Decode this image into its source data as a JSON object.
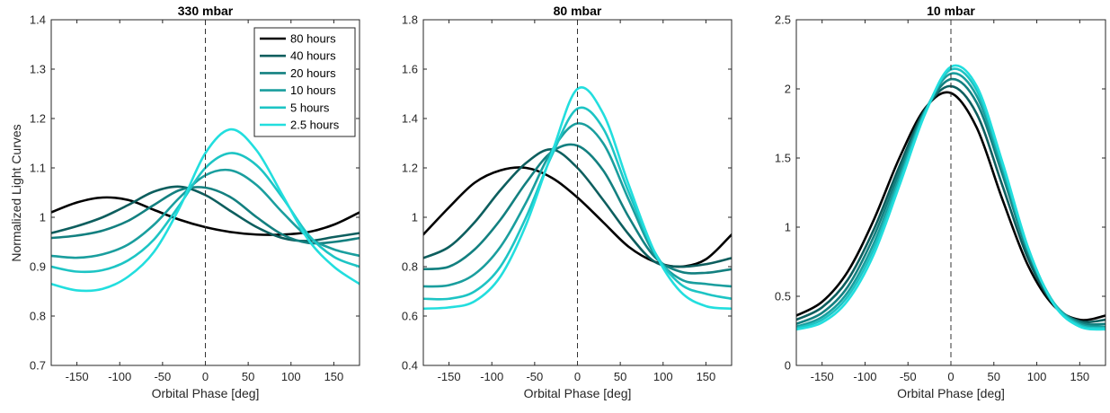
{
  "figure": {
    "ylabel": "Normalized Light Curves",
    "xlabel": "Orbital Phase [deg]"
  },
  "colors": {
    "80 hours": "#000000",
    "40 hours": "#0d5e5e",
    "20 hours": "#138080",
    "10 hours": "#1a9e9e",
    "5 hours": "#1dc4c4",
    "2.5 hours": "#22dede",
    "axis": "#262626",
    "phase_marker": "#333333"
  },
  "legend": {
    "placement": "top-right of first panel",
    "entries": [
      "80 hours",
      "40 hours",
      "20 hours",
      "10 hours",
      "5 hours",
      "2.5 hours"
    ]
  },
  "chart_data": [
    {
      "type": "line",
      "title": "330 mbar",
      "xlabel": "Orbital Phase [deg]",
      "ylabel": "Normalized Light Curves",
      "xlim": [
        -180,
        180
      ],
      "ylim": [
        0.7,
        1.4
      ],
      "xticks": [
        -150,
        -100,
        -50,
        0,
        50,
        100,
        150
      ],
      "yticks": [
        0.7,
        0.8,
        0.9,
        1,
        1.1,
        1.2,
        1.3,
        1.4
      ],
      "ytick_labels": [
        "0.7",
        "0.8",
        "0.9",
        "1",
        "1.1",
        "1.2",
        "1.3",
        "1.4"
      ],
      "vline_x": 0,
      "series": [
        {
          "name": "80 hours",
          "x": [
            -180,
            -150,
            -120,
            -90,
            -60,
            -30,
            0,
            30,
            60,
            90,
            120,
            150,
            180
          ],
          "y": [
            1.01,
            1.03,
            1.04,
            1.035,
            1.015,
            0.995,
            0.98,
            0.97,
            0.965,
            0.965,
            0.97,
            0.985,
            1.01
          ]
        },
        {
          "name": "40 hours",
          "x": [
            -180,
            -150,
            -120,
            -90,
            -60,
            -30,
            0,
            30,
            60,
            90,
            120,
            150,
            180
          ],
          "y": [
            0.968,
            0.982,
            1.0,
            1.025,
            1.052,
            1.062,
            1.045,
            1.012,
            0.98,
            0.958,
            0.952,
            0.96,
            0.968
          ]
        },
        {
          "name": "20 hours",
          "x": [
            -180,
            -150,
            -120,
            -90,
            -60,
            -30,
            0,
            30,
            60,
            90,
            120,
            150,
            180
          ],
          "y": [
            0.958,
            0.963,
            0.973,
            0.993,
            1.025,
            1.055,
            1.06,
            1.04,
            1.0,
            0.965,
            0.948,
            0.95,
            0.958
          ]
        },
        {
          "name": "10 hours",
          "x": [
            -180,
            -150,
            -120,
            -90,
            -60,
            -30,
            0,
            30,
            60,
            90,
            120,
            150,
            180
          ],
          "y": [
            0.922,
            0.918,
            0.925,
            0.945,
            0.985,
            1.04,
            1.085,
            1.095,
            1.065,
            1.01,
            0.96,
            0.935,
            0.922
          ]
        },
        {
          "name": "5 hours",
          "x": [
            -180,
            -150,
            -120,
            -90,
            -60,
            -30,
            0,
            30,
            60,
            90,
            120,
            150,
            180
          ],
          "y": [
            0.9,
            0.89,
            0.893,
            0.913,
            0.955,
            1.025,
            1.1,
            1.13,
            1.105,
            1.04,
            0.965,
            0.92,
            0.9
          ]
        },
        {
          "name": "2.5 hours",
          "x": [
            -180,
            -150,
            -120,
            -90,
            -60,
            -30,
            0,
            30,
            60,
            90,
            120,
            150,
            180
          ],
          "y": [
            0.865,
            0.852,
            0.855,
            0.88,
            0.93,
            1.02,
            1.13,
            1.178,
            1.135,
            1.045,
            0.955,
            0.9,
            0.865
          ]
        }
      ]
    },
    {
      "type": "line",
      "title": "80 mbar",
      "xlabel": "Orbital Phase [deg]",
      "ylabel": "",
      "xlim": [
        -180,
        180
      ],
      "ylim": [
        0.4,
        1.8
      ],
      "xticks": [
        -150,
        -100,
        -50,
        0,
        50,
        100,
        150
      ],
      "yticks": [
        0.4,
        0.6,
        0.8,
        1.0,
        1.2,
        1.4,
        1.6,
        1.8
      ],
      "ytick_labels": [
        "0.4",
        "0.6",
        "0.8",
        "1",
        "1.2",
        "1.4",
        "1.6",
        "1.8"
      ],
      "vline_x": 0,
      "series": [
        {
          "name": "80 hours",
          "x": [
            -180,
            -150,
            -120,
            -90,
            -60,
            -30,
            0,
            30,
            60,
            90,
            120,
            150,
            180
          ],
          "y": [
            0.93,
            1.04,
            1.14,
            1.19,
            1.2,
            1.16,
            1.08,
            0.98,
            0.88,
            0.82,
            0.8,
            0.83,
            0.93
          ]
        },
        {
          "name": "40 hours",
          "x": [
            -180,
            -150,
            -120,
            -90,
            -60,
            -30,
            0,
            30,
            60,
            90,
            120,
            150,
            180
          ],
          "y": [
            0.835,
            0.88,
            0.98,
            1.11,
            1.22,
            1.275,
            1.2,
            1.07,
            0.93,
            0.82,
            0.8,
            0.81,
            0.835
          ]
        },
        {
          "name": "20 hours",
          "x": [
            -180,
            -150,
            -120,
            -90,
            -60,
            -30,
            0,
            30,
            60,
            90,
            120,
            150,
            180
          ],
          "y": [
            0.79,
            0.8,
            0.87,
            0.99,
            1.14,
            1.265,
            1.29,
            1.19,
            1.0,
            0.84,
            0.78,
            0.775,
            0.79
          ]
        },
        {
          "name": "10 hours",
          "x": [
            -180,
            -150,
            -120,
            -90,
            -60,
            -30,
            0,
            30,
            60,
            90,
            120,
            150,
            180
          ],
          "y": [
            0.72,
            0.725,
            0.77,
            0.88,
            1.06,
            1.27,
            1.38,
            1.3,
            1.07,
            0.85,
            0.75,
            0.73,
            0.72
          ]
        },
        {
          "name": "5 hours",
          "x": [
            -180,
            -150,
            -120,
            -90,
            -60,
            -30,
            0,
            30,
            60,
            90,
            120,
            150,
            180
          ],
          "y": [
            0.67,
            0.67,
            0.7,
            0.8,
            1.0,
            1.25,
            1.44,
            1.36,
            1.1,
            0.86,
            0.73,
            0.69,
            0.67
          ]
        },
        {
          "name": "2.5 hours",
          "x": [
            -180,
            -150,
            -120,
            -90,
            -60,
            -30,
            0,
            30,
            60,
            90,
            120,
            150,
            180
          ],
          "y": [
            0.63,
            0.635,
            0.66,
            0.76,
            0.97,
            1.26,
            1.52,
            1.42,
            1.13,
            0.86,
            0.7,
            0.64,
            0.63
          ]
        }
      ]
    },
    {
      "type": "line",
      "title": "10 mbar",
      "xlabel": "Orbital Phase [deg]",
      "ylabel": "",
      "xlim": [
        -180,
        180
      ],
      "ylim": [
        0,
        2.5
      ],
      "xticks": [
        -150,
        -100,
        -50,
        0,
        50,
        100,
        150
      ],
      "yticks": [
        0,
        0.5,
        1,
        1.5,
        2,
        2.5
      ],
      "ytick_labels": [
        "0",
        "0.5",
        "1",
        "1.5",
        "2",
        "2.5"
      ],
      "vline_x": 0,
      "series": [
        {
          "name": "80 hours",
          "x": [
            -180,
            -150,
            -120,
            -90,
            -60,
            -30,
            0,
            30,
            60,
            90,
            120,
            150,
            180
          ],
          "y": [
            0.36,
            0.46,
            0.68,
            1.05,
            1.5,
            1.86,
            1.97,
            1.72,
            1.2,
            0.72,
            0.43,
            0.33,
            0.36
          ]
        },
        {
          "name": "40 hours",
          "x": [
            -180,
            -150,
            -120,
            -90,
            -60,
            -30,
            0,
            30,
            60,
            90,
            120,
            150,
            180
          ],
          "y": [
            0.33,
            0.42,
            0.62,
            0.98,
            1.44,
            1.85,
            2.02,
            1.82,
            1.3,
            0.77,
            0.44,
            0.32,
            0.33
          ]
        },
        {
          "name": "20 hours",
          "x": [
            -180,
            -150,
            -120,
            -90,
            -60,
            -30,
            0,
            30,
            60,
            90,
            120,
            150,
            180
          ],
          "y": [
            0.3,
            0.38,
            0.57,
            0.93,
            1.4,
            1.84,
            2.07,
            1.9,
            1.38,
            0.81,
            0.45,
            0.31,
            0.3
          ]
        },
        {
          "name": "10 hours",
          "x": [
            -180,
            -150,
            -120,
            -90,
            -60,
            -30,
            0,
            30,
            60,
            90,
            120,
            150,
            180
          ],
          "y": [
            0.28,
            0.35,
            0.53,
            0.88,
            1.36,
            1.84,
            2.11,
            1.95,
            1.42,
            0.83,
            0.45,
            0.3,
            0.28
          ]
        },
        {
          "name": "5 hours",
          "x": [
            -180,
            -150,
            -120,
            -90,
            -60,
            -30,
            0,
            30,
            60,
            90,
            120,
            150,
            180
          ],
          "y": [
            0.27,
            0.33,
            0.5,
            0.84,
            1.33,
            1.83,
            2.14,
            1.99,
            1.45,
            0.84,
            0.45,
            0.29,
            0.27
          ]
        },
        {
          "name": "2.5 hours",
          "x": [
            -180,
            -150,
            -120,
            -90,
            -60,
            -30,
            0,
            30,
            60,
            90,
            120,
            150,
            180
          ],
          "y": [
            0.26,
            0.31,
            0.47,
            0.8,
            1.3,
            1.82,
            2.16,
            2.02,
            1.47,
            0.85,
            0.44,
            0.28,
            0.26
          ]
        }
      ]
    }
  ]
}
